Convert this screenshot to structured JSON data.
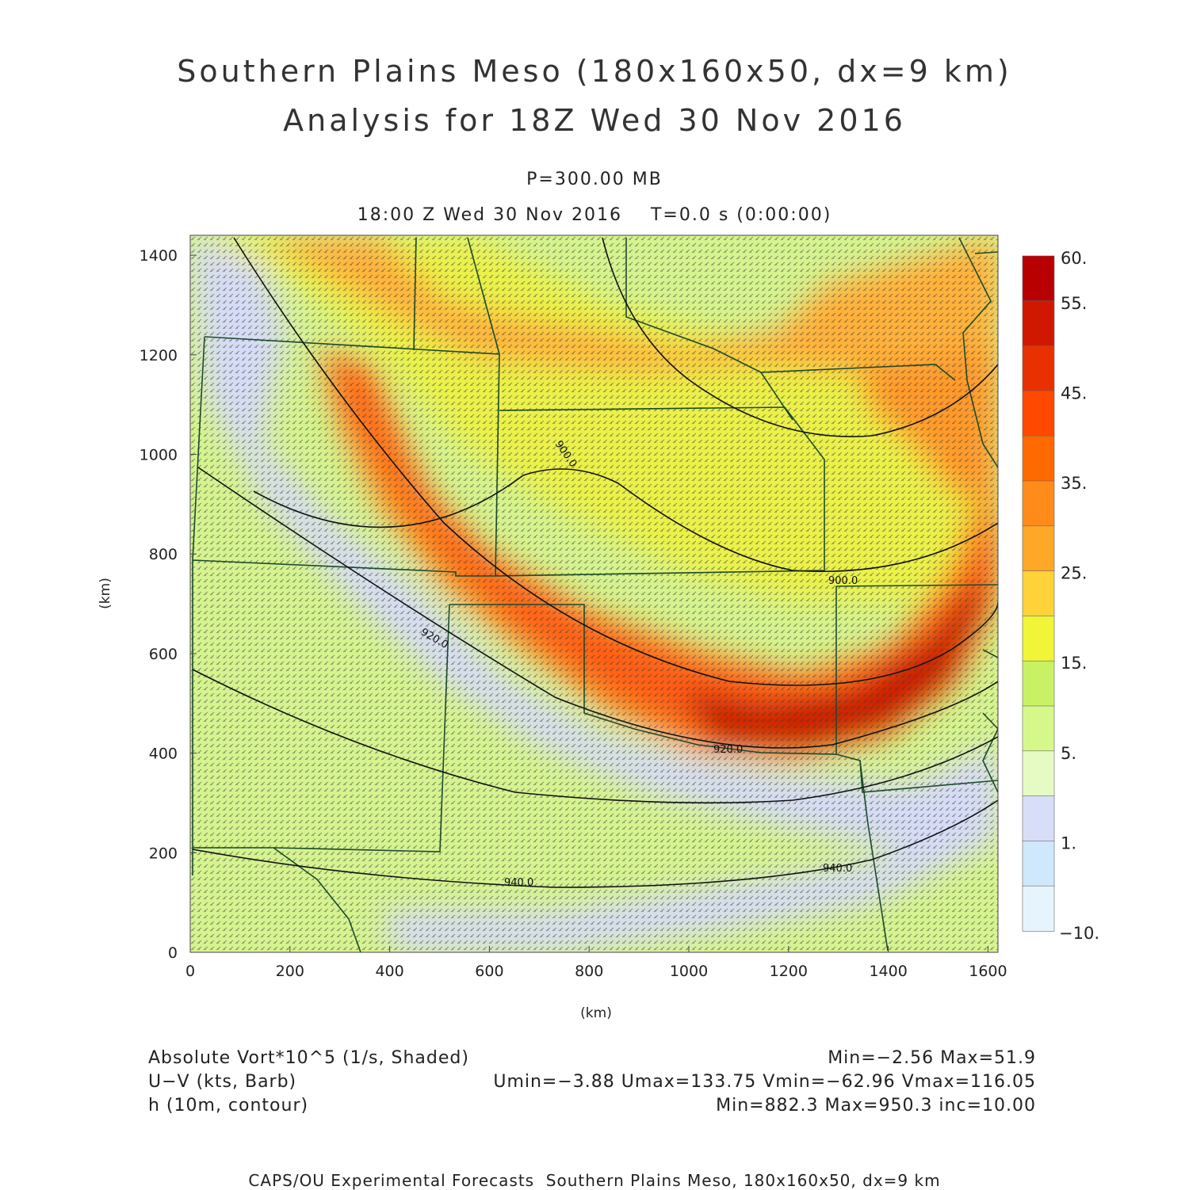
{
  "title": {
    "line1": "Southern Plains Meso (180x160x50, dx=9 km)",
    "line2": "Analysis for 18Z Wed 30 Nov 2016"
  },
  "subtitle": {
    "level": "P=300.00 MB",
    "time": "18:00 Z Wed 30 Nov 2016    T=0.0 s (0:00:00)"
  },
  "axes": {
    "xlabel": "(km)",
    "ylabel": "(km)",
    "xticks": [
      "0",
      "200",
      "400",
      "600",
      "800",
      "1000",
      "1200",
      "1400",
      "1600"
    ],
    "yticks": [
      "0",
      "200",
      "400",
      "600",
      "800",
      "1000",
      "1200",
      "1400"
    ],
    "xrange_km": [
      0,
      1620
    ],
    "yrange_km": [
      0,
      1440
    ]
  },
  "colorbar": {
    "labels": [
      "60.",
      "55.",
      "45.",
      "35.",
      "25.",
      "15.",
      "5.",
      "1.",
      "−10."
    ],
    "colors": [
      "#b80000",
      "#d01800",
      "#e83000",
      "#ff4800",
      "#ff6a00",
      "#ff8c1a",
      "#ffa726",
      "#ffd23a",
      "#f0f537",
      "#c8f264",
      "#d6f88a",
      "#e6fbc4",
      "#d8def7",
      "#cfe8fb",
      "#e6f5fd"
    ]
  },
  "contours": {
    "labels": [
      "900.0",
      "900.0",
      "920.0",
      "920.0",
      "940.0",
      "940.0"
    ]
  },
  "legend": {
    "row1_left": "Absolute Vort*10^5 (1/s, Shaded)",
    "row1_right": "Min=−2.56 Max=51.9",
    "row2_left": "U−V (kts, Barb)",
    "row2_right": "Umin=−3.88 Umax=133.75 Vmin=−62.96 Vmax=116.05",
    "row3_left": "h (10m, contour)",
    "row3_right": "Min=882.3 Max=950.3 inc=10.00"
  },
  "footer": "CAPS/OU Experimental Forecasts  Southern Plains Meso, 180x160x50, dx=9 km"
}
